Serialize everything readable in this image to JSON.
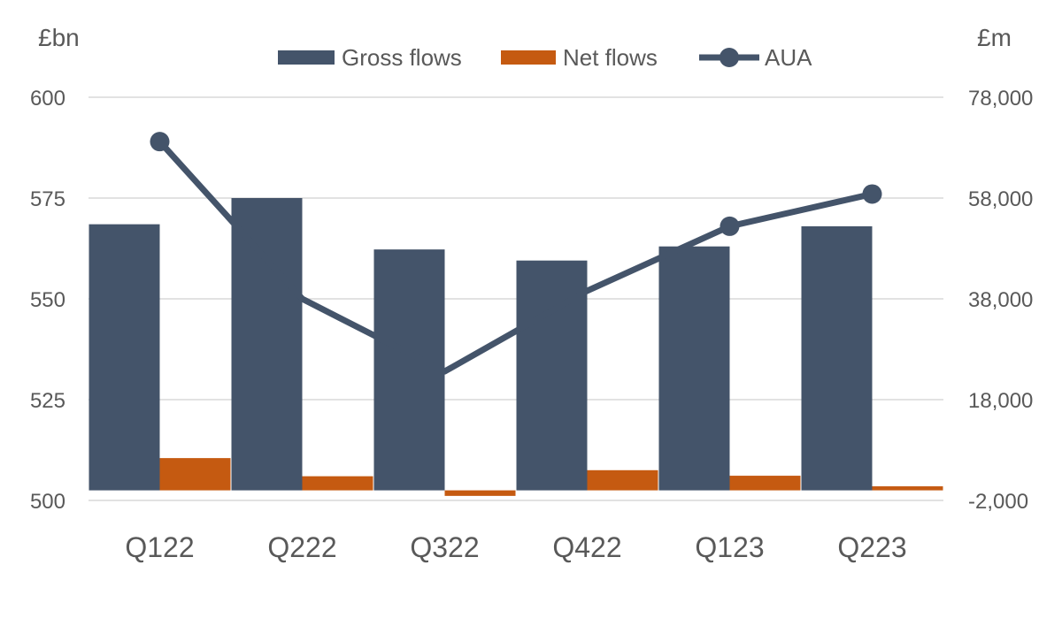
{
  "chart_data": {
    "type": "bar",
    "categories": [
      "Q122",
      "Q222",
      "Q322",
      "Q422",
      "Q123",
      "Q223"
    ],
    "left_axis": {
      "unit": "£bn",
      "min": 500,
      "max": 600,
      "ticks": [
        "500",
        "525",
        "550",
        "575",
        "600"
      ]
    },
    "right_axis": {
      "unit": "£m",
      "min": -2000,
      "max": 78000,
      "ticks": [
        "-2,000",
        "18,000",
        "38,000",
        "58,000",
        "78,000"
      ]
    },
    "series": [
      {
        "name": "Gross flows",
        "type": "bar",
        "axis": "right",
        "color": "#44546A",
        "values": [
          52800,
          58000,
          47800,
          45600,
          48400,
          52400
        ]
      },
      {
        "name": "Net flows",
        "type": "bar",
        "axis": "right",
        "color": "#C55A11",
        "values": [
          6400,
          2800,
          -1100,
          4000,
          2900,
          800
        ]
      },
      {
        "name": "AUA",
        "type": "line",
        "axis": "left",
        "color": "#44546A",
        "values": [
          589,
          550,
          532,
          552,
          568,
          576
        ]
      }
    ],
    "legend_position": "top",
    "grid": true,
    "colors": {
      "gridline": "#D9D9D9",
      "text": "#595959"
    }
  }
}
